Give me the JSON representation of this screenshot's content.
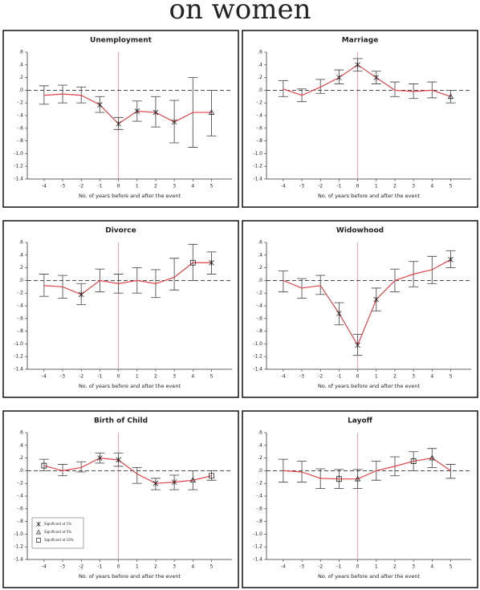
{
  "heading": "on women",
  "chart_data": [
    {
      "type": "line",
      "title": "Unemployment",
      "x_label": "No. of years before and after the event",
      "x": [
        -4,
        -3,
        -2,
        -1,
        0,
        1,
        2,
        3,
        4,
        5
      ],
      "values": [
        -0.08,
        -0.06,
        -0.08,
        -0.23,
        -0.53,
        -0.33,
        -0.35,
        -0.5,
        -0.35,
        -0.35
      ],
      "lower": [
        -0.22,
        -0.2,
        -0.2,
        -0.35,
        -0.62,
        -0.49,
        -0.58,
        -0.83,
        -0.9,
        -0.72
      ],
      "upper": [
        0.07,
        0.08,
        0.05,
        -0.1,
        -0.43,
        -0.17,
        -0.1,
        -0.16,
        0.2,
        0.0
      ],
      "markers": [
        null,
        null,
        null,
        "star",
        "star",
        "star",
        "star",
        "star",
        null,
        "triangle"
      ],
      "color": "#e0454c",
      "error_color": "#555555",
      "reference_lines": true,
      "xlim": [
        -4.9,
        6.1
      ],
      "xticks": [
        -4,
        -3,
        -2,
        -1,
        0,
        1,
        2,
        3,
        4,
        5
      ],
      "ylim": [
        -1.4,
        0.6
      ],
      "yticks": [
        {
          "value": 0.6,
          "label": ".6"
        },
        {
          "value": 0.4,
          "label": ".4"
        },
        {
          "value": 0.2,
          "label": ".2"
        },
        {
          "value": 0,
          "label": ".0"
        },
        {
          "value": -0.2,
          "label": "-.2"
        },
        {
          "value": -0.4,
          "label": "-.4"
        },
        {
          "value": -0.6,
          "label": "-.6"
        },
        {
          "value": -0.8,
          "label": "-.8"
        },
        {
          "value": -1.0,
          "label": "-1.0"
        },
        {
          "value": -1.2,
          "label": "-1.2"
        },
        {
          "value": -1.4,
          "label": "-1.4"
        }
      ]
    },
    {
      "type": "line",
      "title": "Marriage",
      "x_label": "No. of years before and after the event",
      "x": [
        -4,
        -3,
        -2,
        -1,
        0,
        1,
        2,
        3,
        4,
        5
      ],
      "values": [
        0.02,
        -0.08,
        0.05,
        0.2,
        0.4,
        0.2,
        0.0,
        -0.02,
        0.0,
        -0.1
      ],
      "lower": [
        -0.1,
        -0.18,
        -0.05,
        0.1,
        0.3,
        0.1,
        -0.1,
        -0.13,
        -0.12,
        -0.2
      ],
      "upper": [
        0.15,
        0.02,
        0.17,
        0.32,
        0.5,
        0.3,
        0.13,
        0.1,
        0.13,
        0.0
      ],
      "markers": [
        null,
        null,
        null,
        "star",
        "star",
        "star",
        null,
        null,
        null,
        "triangle"
      ],
      "color": "#e0454c",
      "error_color": "#555555",
      "reference_lines": true,
      "xlim": [
        -4.9,
        6.1
      ],
      "xticks": [
        -4,
        -3,
        -2,
        -1,
        0,
        1,
        2,
        3,
        4,
        5
      ],
      "ylim": [
        -1.4,
        0.6
      ],
      "yticks": [
        {
          "value": 0.6,
          "label": ".6"
        },
        {
          "value": 0.4,
          "label": ".4"
        },
        {
          "value": 0.2,
          "label": ".2"
        },
        {
          "value": 0,
          "label": ".0"
        },
        {
          "value": -0.2,
          "label": "-.2"
        },
        {
          "value": -0.4,
          "label": "-.4"
        },
        {
          "value": -0.6,
          "label": "-.6"
        },
        {
          "value": -0.8,
          "label": "-.8"
        },
        {
          "value": -1.0,
          "label": "-1.0"
        },
        {
          "value": -1.2,
          "label": "-1.2"
        },
        {
          "value": -1.4,
          "label": "-1.4"
        }
      ]
    },
    {
      "type": "line",
      "title": "Divorce",
      "x_label": "No. of years before and after the event",
      "x": [
        -4,
        -3,
        -2,
        -1,
        0,
        1,
        2,
        3,
        4,
        5
      ],
      "values": [
        -0.08,
        -0.1,
        -0.22,
        0.0,
        -0.05,
        0.0,
        -0.05,
        0.05,
        0.28,
        0.28
      ],
      "lower": [
        -0.25,
        -0.28,
        -0.38,
        -0.18,
        -0.2,
        -0.2,
        -0.27,
        -0.15,
        0.0,
        0.1
      ],
      "upper": [
        0.1,
        0.08,
        -0.05,
        0.18,
        0.1,
        0.2,
        0.17,
        0.35,
        0.57,
        0.45
      ],
      "markers": [
        null,
        null,
        "star",
        null,
        null,
        null,
        null,
        null,
        "square",
        "star"
      ],
      "color": "#e0454c",
      "error_color": "#555555",
      "reference_lines": true,
      "xlim": [
        -4.9,
        6.1
      ],
      "xticks": [
        -4,
        -3,
        -2,
        -1,
        0,
        1,
        2,
        3,
        4,
        5
      ],
      "ylim": [
        -1.4,
        0.6
      ],
      "yticks": [
        {
          "value": 0.6,
          "label": ".6"
        },
        {
          "value": 0.4,
          "label": ".4"
        },
        {
          "value": 0.2,
          "label": ".2"
        },
        {
          "value": 0,
          "label": ".0"
        },
        {
          "value": -0.2,
          "label": "-.2"
        },
        {
          "value": -0.4,
          "label": "-.4"
        },
        {
          "value": -0.6,
          "label": "-.6"
        },
        {
          "value": -0.8,
          "label": "-.8"
        },
        {
          "value": -1.0,
          "label": "-1.0"
        },
        {
          "value": -1.2,
          "label": "-1.2"
        },
        {
          "value": -1.4,
          "label": "-1.4"
        }
      ]
    },
    {
      "type": "line",
      "title": "Widowhood",
      "x_label": "No. of years before and after the event",
      "x": [
        -4,
        -3,
        -2,
        -1,
        0,
        1,
        2,
        3,
        4,
        5
      ],
      "values": [
        0.0,
        -0.12,
        -0.08,
        -0.52,
        -1.02,
        -0.3,
        0.0,
        0.1,
        0.17,
        0.33
      ],
      "lower": [
        -0.18,
        -0.28,
        -0.22,
        -0.7,
        -1.18,
        -0.48,
        -0.18,
        -0.1,
        -0.05,
        0.2
      ],
      "upper": [
        0.15,
        0.03,
        0.08,
        -0.35,
        -0.85,
        -0.12,
        0.18,
        0.3,
        0.38,
        0.47
      ],
      "markers": [
        null,
        null,
        null,
        "star",
        "star",
        "star",
        null,
        null,
        null,
        "star"
      ],
      "color": "#e0454c",
      "error_color": "#555555",
      "reference_lines": true,
      "xlim": [
        -4.9,
        6.1
      ],
      "xticks": [
        -4,
        -3,
        -2,
        -1,
        0,
        1,
        2,
        3,
        4,
        5
      ],
      "ylim": [
        -1.4,
        0.6
      ],
      "yticks": [
        {
          "value": 0.6,
          "label": ".6"
        },
        {
          "value": 0.4,
          "label": ".4"
        },
        {
          "value": 0.2,
          "label": ".2"
        },
        {
          "value": 0,
          "label": ".0"
        },
        {
          "value": -0.2,
          "label": "-.2"
        },
        {
          "value": -0.4,
          "label": "-.4"
        },
        {
          "value": -0.6,
          "label": "-.6"
        },
        {
          "value": -0.8,
          "label": "-.8"
        },
        {
          "value": -1.0,
          "label": "-1.0"
        },
        {
          "value": -1.2,
          "label": "-1.2"
        },
        {
          "value": -1.4,
          "label": "-1.4"
        }
      ]
    },
    {
      "type": "line",
      "title": "Birth of Child",
      "x_label": "No. of years before and after the event",
      "x": [
        -4,
        -3,
        -2,
        -1,
        0,
        1,
        2,
        3,
        4,
        5
      ],
      "values": [
        0.08,
        0.0,
        0.05,
        0.2,
        0.17,
        -0.05,
        -0.2,
        -0.18,
        -0.15,
        -0.08
      ],
      "lower": [
        0.0,
        -0.08,
        -0.02,
        0.12,
        0.07,
        -0.2,
        -0.3,
        -0.3,
        -0.3,
        -0.15
      ],
      "upper": [
        0.18,
        0.1,
        0.14,
        0.28,
        0.28,
        0.05,
        -0.12,
        -0.07,
        0.0,
        0.0
      ],
      "markers": [
        "square",
        null,
        null,
        "star",
        "star",
        null,
        "star",
        "star",
        "triangle",
        "square"
      ],
      "color": "#e0454c",
      "error_color": "#555555",
      "reference_lines": true,
      "legend": [
        {
          "label": "Significant at 1%",
          "marker": "star"
        },
        {
          "label": "Significant at 5%",
          "marker": "triangle"
        },
        {
          "label": "Significant at 10%",
          "marker": "square"
        }
      ],
      "xlim": [
        -4.9,
        6.1
      ],
      "xticks": [
        -4,
        -3,
        -2,
        -1,
        0,
        1,
        2,
        3,
        4,
        5
      ],
      "ylim": [
        -1.4,
        0.6
      ],
      "yticks": [
        {
          "value": 0.6,
          "label": ".6"
        },
        {
          "value": 0.4,
          "label": ".4"
        },
        {
          "value": 0.2,
          "label": ".2"
        },
        {
          "value": 0,
          "label": ".0"
        },
        {
          "value": -0.2,
          "label": "-.2"
        },
        {
          "value": -0.4,
          "label": "-.4"
        },
        {
          "value": -0.6,
          "label": "-.6"
        },
        {
          "value": -0.8,
          "label": "-.8"
        },
        {
          "value": -1.0,
          "label": "-1.0"
        },
        {
          "value": -1.2,
          "label": "-1.2"
        },
        {
          "value": -1.4,
          "label": "-1.4"
        }
      ]
    },
    {
      "type": "line",
      "title": "Layoff",
      "x_label": "No. of years before and after the event",
      "x": [
        -4,
        -3,
        -2,
        -1,
        0,
        1,
        2,
        3,
        4,
        5
      ],
      "values": [
        0.0,
        -0.02,
        -0.12,
        -0.13,
        -0.13,
        0.0,
        0.07,
        0.15,
        0.2,
        0.0
      ],
      "lower": [
        -0.18,
        -0.18,
        -0.28,
        -0.28,
        -0.28,
        -0.15,
        -0.08,
        0.0,
        0.05,
        -0.12
      ],
      "upper": [
        0.18,
        0.15,
        0.03,
        0.02,
        0.02,
        0.15,
        0.22,
        0.3,
        0.35,
        0.1
      ],
      "markers": [
        null,
        null,
        null,
        "square",
        "triangle",
        null,
        null,
        "square",
        "triangle",
        null
      ],
      "color": "#e0454c",
      "error_color": "#555555",
      "reference_lines": true,
      "xlim": [
        -4.9,
        6.1
      ],
      "xticks": [
        -4,
        -3,
        -2,
        -1,
        0,
        1,
        2,
        3,
        4,
        5
      ],
      "ylim": [
        -1.4,
        0.6
      ],
      "yticks": [
        {
          "value": 0.6,
          "label": ".6"
        },
        {
          "value": 0.4,
          "label": ".4"
        },
        {
          "value": 0.2,
          "label": ".2"
        },
        {
          "value": 0,
          "label": ".0"
        },
        {
          "value": -0.2,
          "label": "-.2"
        },
        {
          "value": -0.4,
          "label": "-.4"
        },
        {
          "value": -0.6,
          "label": "-.6"
        },
        {
          "value": -0.8,
          "label": "-.8"
        },
        {
          "value": -1.0,
          "label": "-1.0"
        },
        {
          "value": -1.2,
          "label": "-1.2"
        },
        {
          "value": -1.4,
          "label": "-1.4"
        }
      ]
    }
  ]
}
